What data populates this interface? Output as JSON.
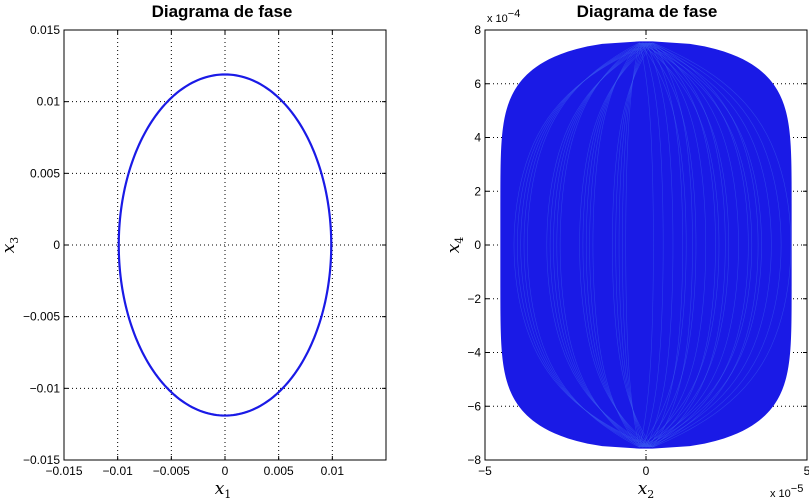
{
  "chart_data": [
    {
      "type": "line",
      "title": "Diagrama de fase",
      "xlabel": "x",
      "xlabel_sub": "1",
      "ylabel": "x",
      "ylabel_sub": "3",
      "xlim": [
        -0.015,
        0.015
      ],
      "ylim": [
        -0.015,
        0.015
      ],
      "grid": true,
      "x_ticks": [
        -0.015,
        -0.01,
        -0.005,
        0,
        0.005,
        0.01
      ],
      "x_tick_labels": [
        "−0.015",
        "−0.01",
        "−0.005",
        "0",
        "0.005",
        "0.01"
      ],
      "y_ticks": [
        -0.015,
        -0.01,
        -0.005,
        0,
        0.005,
        0.01,
        0.015
      ],
      "y_tick_labels": [
        "−0.015",
        "−0.01",
        "−0.005",
        "0",
        "0.005",
        "0.01",
        "0.015"
      ],
      "series": [
        {
          "shape": "ellipse",
          "color": "#1a1ae6",
          "center": [
            0,
            0
          ],
          "x_amplitude": 0.0099,
          "y_amplitude": 0.0119
        }
      ]
    },
    {
      "type": "line",
      "title": "Diagrama de fase",
      "xlabel": "x",
      "xlabel_sub": "2",
      "ylabel": "x",
      "ylabel_sub": "4",
      "x_exponent": "x 10",
      "x_exponent_power": "−5",
      "y_exponent": "x 10",
      "y_exponent_power": "−4",
      "xlim": [
        -5,
        5
      ],
      "ylim": [
        -8,
        8
      ],
      "grid": true,
      "x_ticks": [
        -5,
        0,
        5
      ],
      "x_tick_labels": [
        "−5",
        "0",
        "5"
      ],
      "y_ticks": [
        -8,
        -6,
        -4,
        -2,
        0,
        2,
        4,
        6,
        8
      ],
      "y_tick_labels": [
        "−8",
        "−6",
        "−4",
        "−2",
        "0",
        "2",
        "4",
        "6",
        "8"
      ],
      "series": [
        {
          "shape": "dense-lissajous",
          "color": "#1a1ae6",
          "x_amplitude": 4.3,
          "y_amplitude": 7.55,
          "x_shift_range": [
            -0.2,
            0.2
          ]
        }
      ]
    }
  ]
}
